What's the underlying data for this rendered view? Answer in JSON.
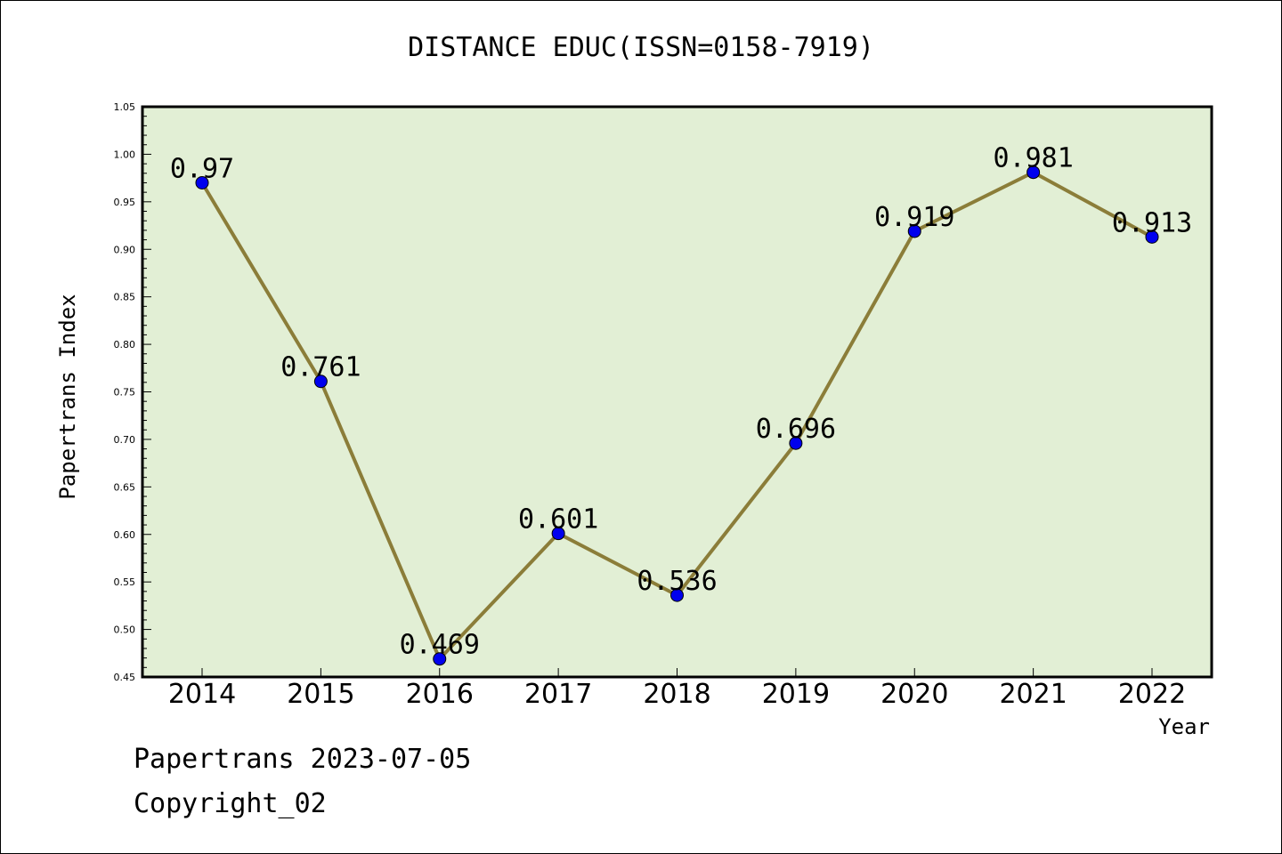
{
  "chart_data": {
    "type": "line",
    "title": "DISTANCE EDUC(ISSN=0158-7919)",
    "xlabel": "Year",
    "ylabel": "Papertrans Index",
    "categories": [
      "2014",
      "2015",
      "2016",
      "2017",
      "2018",
      "2019",
      "2020",
      "2021",
      "2022"
    ],
    "series": [
      {
        "values": [
          0.97,
          0.761,
          0.469,
          0.601,
          0.536,
          0.696,
          0.919,
          0.981,
          0.913
        ],
        "labels": [
          "0.97",
          "0.761",
          "0.469",
          "0.601",
          "0.536",
          "0.696",
          "0.919",
          "0.981",
          "0.913"
        ]
      }
    ],
    "ylim": [
      0.45,
      1.05
    ],
    "yticks": [
      "0.45",
      "0.50",
      "0.55",
      "0.60",
      "0.65",
      "0.70",
      "0.75",
      "0.80",
      "0.85",
      "0.90",
      "0.95",
      "1.00",
      "1.05"
    ],
    "grid": false,
    "plot_background": "#e2efd5",
    "line_color": "#8b7d39",
    "marker_color": "#0000ee"
  },
  "footer": {
    "date_line": "Papertrans 2023-07-05",
    "copyright_line": "Copyright_02"
  }
}
